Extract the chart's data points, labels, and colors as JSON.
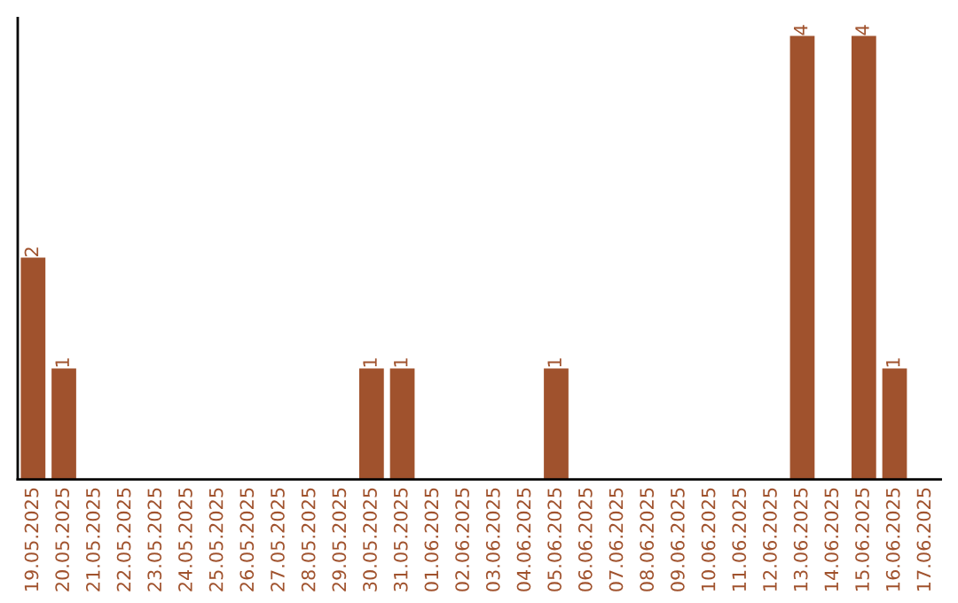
{
  "chart_data": {
    "type": "bar",
    "categories": [
      "19.05.2025",
      "20.05.2025",
      "21.05.2025",
      "22.05.2025",
      "23.05.2025",
      "24.05.2025",
      "25.05.2025",
      "26.05.2025",
      "27.05.2025",
      "28.05.2025",
      "29.05.2025",
      "30.05.2025",
      "31.05.2025",
      "01.06.2025",
      "02.06.2025",
      "03.06.2025",
      "04.06.2025",
      "05.06.2025",
      "06.06.2025",
      "07.06.2025",
      "08.06.2025",
      "09.06.2025",
      "10.06.2025",
      "11.06.2025",
      "12.06.2025",
      "13.06.2025",
      "14.06.2025",
      "15.06.2025",
      "16.06.2025",
      "17.06.2025"
    ],
    "values": [
      2,
      1,
      0,
      0,
      0,
      0,
      0,
      0,
      0,
      0,
      0,
      1,
      1,
      0,
      0,
      0,
      0,
      1,
      0,
      0,
      0,
      0,
      0,
      0,
      0,
      4,
      0,
      4,
      1,
      0
    ],
    "color": "#a0522d",
    "value_labels": [
      "2",
      "1",
      null,
      null,
      null,
      null,
      null,
      null,
      null,
      null,
      null,
      "1",
      "1",
      null,
      null,
      null,
      null,
      "1",
      null,
      null,
      null,
      null,
      null,
      null,
      null,
      "4",
      null,
      "4",
      "1",
      null
    ],
    "ylim": [
      0,
      4.16
    ],
    "tick_labels": "x",
    "grid": false,
    "legend": false
  }
}
